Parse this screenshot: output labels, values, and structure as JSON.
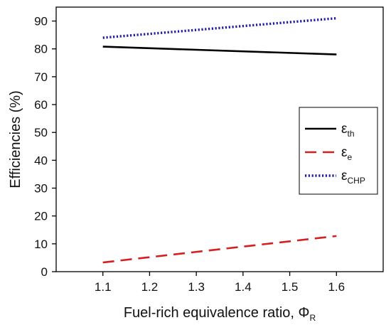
{
  "chart_data": {
    "type": "line",
    "title": "",
    "xlabel": "Fuel-rich equivalence ratio, ",
    "xlabel_symbol": "Φ",
    "xlabel_sub": "R",
    "ylabel": "Efficiencies (%)",
    "xlim": [
      1.0,
      1.7
    ],
    "ylim": [
      0,
      95
    ],
    "xticks": [
      "1.1",
      "1.2",
      "1.3",
      "1.4",
      "1.5",
      "1.6"
    ],
    "yticks": [
      "0",
      "10",
      "20",
      "30",
      "40",
      "50",
      "60",
      "70",
      "80",
      "90"
    ],
    "grid": false,
    "legend_position": "right",
    "x": [
      1.1,
      1.6
    ],
    "series": [
      {
        "name": "ε",
        "sub": "th",
        "values": [
          80.8,
          78.0
        ],
        "color": "#000000",
        "style": "solid"
      },
      {
        "name": "ε",
        "sub": "e",
        "values": [
          3.3,
          12.8
        ],
        "color": "#d42020",
        "style": "dashed"
      },
      {
        "name": "ε",
        "sub": "CHP",
        "values": [
          84.0,
          91.0
        ],
        "color": "#1c1ca8",
        "style": "dotted"
      }
    ]
  }
}
